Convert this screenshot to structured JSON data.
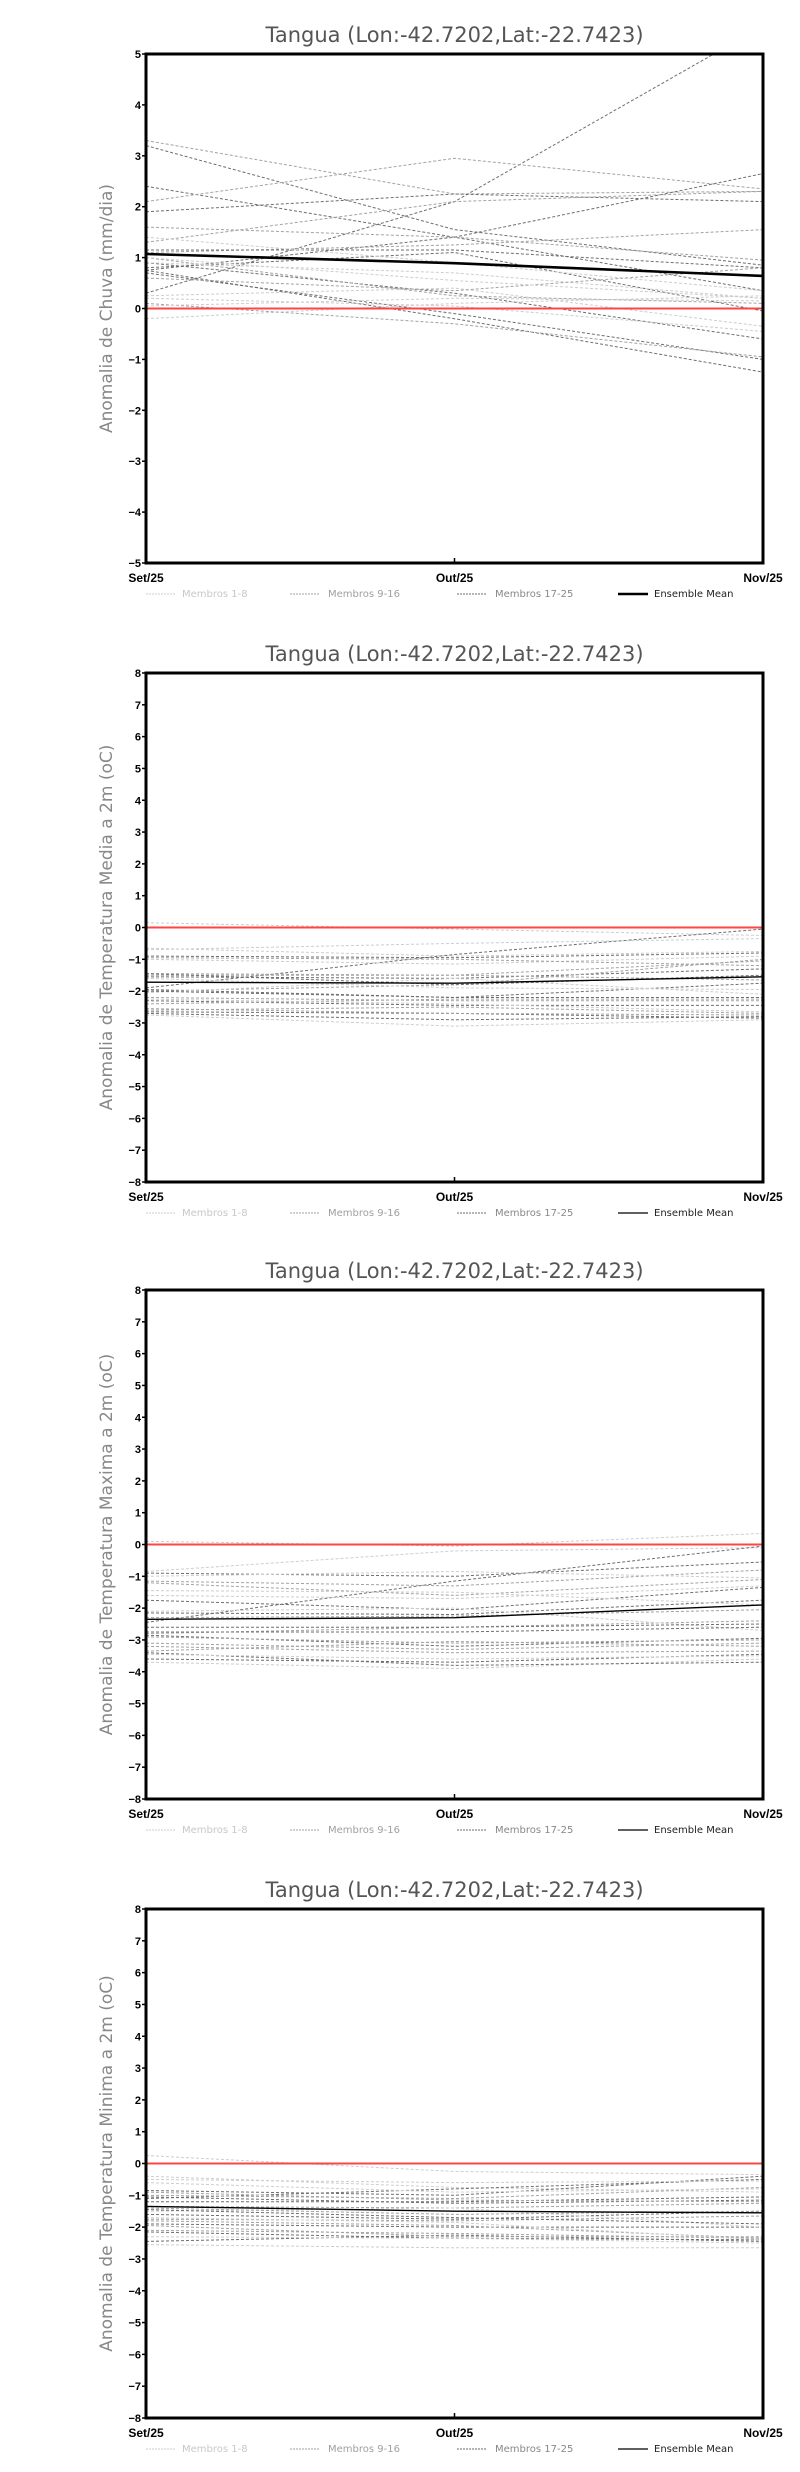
{
  "chart_data": [
    {
      "type": "line",
      "title": "Tangua (Lon:-42.7202,Lat:-22.7423)",
      "ylabel": "Anomalia de Chuva (mm/dia)",
      "categories": [
        "Set/25",
        "Out/25",
        "Nov/25"
      ],
      "ylim": [
        -5,
        5
      ],
      "yticks": [
        -5,
        -4,
        -3,
        -2,
        -1,
        0,
        1,
        2,
        3,
        4,
        5
      ],
      "reference_line": 0,
      "legend": [
        "Membros 1-8",
        "Membros 9-16",
        "Membros 17-25",
        "Ensemble Mean"
      ],
      "legend_position": "bottom",
      "ensemble_mean": [
        1.07,
        0.89,
        0.64
      ],
      "members": [
        {
          "group": 2,
          "values": [
            0.3,
            2.1,
            5.55
          ]
        },
        {
          "group": 2,
          "values": [
            3.2,
            1.55,
            0.85
          ]
        },
        {
          "group": 2,
          "values": [
            2.4,
            1.4,
            0.35
          ]
        },
        {
          "group": 1,
          "values": [
            3.3,
            2.25,
            2.3
          ]
        },
        {
          "group": 1,
          "values": [
            2.1,
            2.95,
            2.35
          ]
        },
        {
          "group": 2,
          "values": [
            1.9,
            2.25,
            2.1
          ]
        },
        {
          "group": 2,
          "values": [
            0.75,
            1.4,
            2.65
          ]
        },
        {
          "group": 1,
          "values": [
            1.6,
            1.4,
            0.95
          ]
        },
        {
          "group": 1,
          "values": [
            1.3,
            2.1,
            2.3
          ]
        },
        {
          "group": 1,
          "values": [
            1.1,
            1.25,
            1.55
          ]
        },
        {
          "group": 2,
          "values": [
            1.15,
            1.15,
            0.8
          ]
        },
        {
          "group": 2,
          "values": [
            0.8,
            1.1,
            -0.05
          ]
        },
        {
          "group": 2,
          "values": [
            0.7,
            -0.1,
            -1.0
          ]
        },
        {
          "group": 2,
          "values": [
            0.75,
            -0.2,
            -1.25
          ]
        },
        {
          "group": 2,
          "values": [
            0.9,
            0.3,
            -0.6
          ]
        },
        {
          "group": 1,
          "values": [
            1.0,
            0.25,
            0.1
          ]
        },
        {
          "group": 0,
          "values": [
            1.4,
            0.9,
            0.35
          ]
        },
        {
          "group": 0,
          "values": [
            0.9,
            0.7,
            0.2
          ]
        },
        {
          "group": 0,
          "values": [
            0.25,
            0.4,
            -0.35
          ]
        },
        {
          "group": 0,
          "values": [
            0.2,
            0.05,
            -0.45
          ]
        },
        {
          "group": 0,
          "values": [
            -0.2,
            0.1,
            0.25
          ]
        },
        {
          "group": 1,
          "values": [
            0.1,
            -0.3,
            -0.95
          ]
        },
        {
          "group": 0,
          "values": [
            0.05,
            0.2,
            0.15
          ]
        },
        {
          "group": 1,
          "values": [
            0.6,
            0.35,
            0.8
          ]
        },
        {
          "group": 0,
          "values": [
            1.0,
            0.55,
            0.2
          ]
        }
      ]
    },
    {
      "type": "line",
      "title": "Tangua (Lon:-42.7202,Lat:-22.7423)",
      "ylabel": "Anomalia de Temperatura Media a 2m (oC)",
      "categories": [
        "Set/25",
        "Out/25",
        "Nov/25"
      ],
      "ylim": [
        -8,
        8
      ],
      "yticks": [
        -8,
        -7,
        -6,
        -5,
        -4,
        -3,
        -2,
        -1,
        0,
        1,
        2,
        3,
        4,
        5,
        6,
        7,
        8
      ],
      "reference_line": 0,
      "legend": [
        "Membros 1-8",
        "Membros 9-16",
        "Membros 17-25",
        "Ensemble Mean"
      ],
      "legend_position": "bottom",
      "ensemble_mean": [
        -1.72,
        -1.75,
        -1.55
      ],
      "members": [
        {
          "group": 0,
          "values": [
            0.15,
            -0.05,
            -0.25
          ]
        },
        {
          "group": 0,
          "values": [
            -0.65,
            -0.9,
            -0.75
          ]
        },
        {
          "group": 2,
          "values": [
            -0.9,
            -0.95,
            -0.8
          ]
        },
        {
          "group": 2,
          "values": [
            -1.9,
            -0.85,
            -0.05
          ]
        },
        {
          "group": 1,
          "values": [
            -1.45,
            -1.5,
            -1.05
          ]
        },
        {
          "group": 2,
          "values": [
            -1.55,
            -1.6,
            -1.3
          ]
        },
        {
          "group": 1,
          "values": [
            -2.0,
            -1.8,
            -1.0
          ]
        },
        {
          "group": 2,
          "values": [
            -1.95,
            -2.2,
            -1.75
          ]
        },
        {
          "group": 1,
          "values": [
            -2.2,
            -2.3,
            -2.3
          ]
        },
        {
          "group": 2,
          "values": [
            -2.3,
            -2.45,
            -2.45
          ]
        },
        {
          "group": 1,
          "values": [
            -2.6,
            -2.5,
            -2.7
          ]
        },
        {
          "group": 2,
          "values": [
            -2.7,
            -2.9,
            -2.8
          ]
        },
        {
          "group": 0,
          "values": [
            -2.75,
            -3.1,
            -2.9
          ]
        },
        {
          "group": 0,
          "values": [
            -1.0,
            -1.15,
            -0.9
          ]
        },
        {
          "group": 0,
          "values": [
            -2.05,
            -1.6,
            -2.1
          ]
        },
        {
          "group": 1,
          "values": [
            -2.4,
            -2.25,
            -2.25
          ]
        },
        {
          "group": 2,
          "values": [
            -2.65,
            -2.7,
            -2.85
          ]
        },
        {
          "group": 1,
          "values": [
            -1.5,
            -1.5,
            -1.65
          ]
        },
        {
          "group": 0,
          "values": [
            -0.7,
            -0.5,
            -0.35
          ]
        },
        {
          "group": 2,
          "values": [
            -1.45,
            -1.8,
            -1.5
          ]
        },
        {
          "group": 1,
          "values": [
            -2.55,
            -2.7,
            -2.75
          ]
        },
        {
          "group": 0,
          "values": [
            -2.25,
            -2.4,
            -2.65
          ]
        },
        {
          "group": 2,
          "values": [
            -2.0,
            -2.2,
            -2.2
          ]
        },
        {
          "group": 1,
          "values": [
            -0.95,
            -1.0,
            -1.2
          ]
        },
        {
          "group": 0,
          "values": [
            -1.6,
            -1.9,
            -1.95
          ]
        }
      ]
    },
    {
      "type": "line",
      "title": "Tangua (Lon:-42.7202,Lat:-22.7423)",
      "ylabel": "Anomalia de Temperatura Maxima a 2m (oC)",
      "categories": [
        "Set/25",
        "Out/25",
        "Nov/25"
      ],
      "ylim": [
        -8,
        8
      ],
      "yticks": [
        -8,
        -7,
        -6,
        -5,
        -4,
        -3,
        -2,
        -1,
        0,
        1,
        2,
        3,
        4,
        5,
        6,
        7,
        8
      ],
      "reference_line": 0,
      "legend": [
        "Membros 1-8",
        "Membros 9-16",
        "Membros 17-25",
        "Ensemble Mean"
      ],
      "legend_position": "bottom",
      "ensemble_mean": [
        -2.35,
        -2.3,
        -1.9
      ],
      "members": [
        {
          "group": 0,
          "values": [
            0.1,
            -0.05,
            0.35
          ]
        },
        {
          "group": 0,
          "values": [
            -0.85,
            -0.2,
            -0.1
          ]
        },
        {
          "group": 2,
          "values": [
            -0.9,
            -1.0,
            -0.55
          ]
        },
        {
          "group": 2,
          "values": [
            -2.45,
            -1.15,
            -0.05
          ]
        },
        {
          "group": 1,
          "values": [
            -1.15,
            -1.3,
            -0.8
          ]
        },
        {
          "group": 2,
          "values": [
            -1.75,
            -2.05,
            -1.35
          ]
        },
        {
          "group": 1,
          "values": [
            -1.2,
            -1.6,
            -1.1
          ]
        },
        {
          "group": 2,
          "values": [
            -2.15,
            -2.2,
            -1.75
          ]
        },
        {
          "group": 1,
          "values": [
            -2.8,
            -2.6,
            -2.4
          ]
        },
        {
          "group": 2,
          "values": [
            -2.85,
            -3.2,
            -2.95
          ]
        },
        {
          "group": 1,
          "values": [
            -3.35,
            -3.05,
            -3.2
          ]
        },
        {
          "group": 2,
          "values": [
            -3.6,
            -3.7,
            -3.45
          ]
        },
        {
          "group": 0,
          "values": [
            -3.7,
            -3.9,
            -3.6
          ]
        },
        {
          "group": 0,
          "values": [
            -1.45,
            -1.5,
            -1.9
          ]
        },
        {
          "group": 0,
          "values": [
            -2.1,
            -2.0,
            -2.7
          ]
        },
        {
          "group": 1,
          "values": [
            -3.1,
            -3.3,
            -3.1
          ]
        },
        {
          "group": 2,
          "values": [
            -3.4,
            -3.8,
            -3.7
          ]
        },
        {
          "group": 1,
          "values": [
            -2.3,
            -2.25,
            -2.05
          ]
        },
        {
          "group": 0,
          "values": [
            -1.0,
            -0.85,
            -1.05
          ]
        },
        {
          "group": 2,
          "values": [
            -2.6,
            -2.6,
            -2.5
          ]
        },
        {
          "group": 1,
          "values": [
            -3.2,
            -3.4,
            -3.35
          ]
        },
        {
          "group": 0,
          "values": [
            -3.45,
            -3.6,
            -3.5
          ]
        },
        {
          "group": 2,
          "values": [
            -2.75,
            -2.75,
            -2.6
          ]
        },
        {
          "group": 1,
          "values": [
            -2.9,
            -3.1,
            -3.0
          ]
        },
        {
          "group": 0,
          "values": [
            -1.6,
            -1.7,
            -1.3
          ]
        }
      ]
    },
    {
      "type": "line",
      "title": "Tangua (Lon:-42.7202,Lat:-22.7423)",
      "ylabel": "Anomalia de Temperatura Minima a 2m (oC)",
      "categories": [
        "Set/25",
        "Out/25",
        "Nov/25"
      ],
      "ylim": [
        -8,
        8
      ],
      "yticks": [
        -8,
        -7,
        -6,
        -5,
        -4,
        -3,
        -2,
        -1,
        0,
        1,
        2,
        3,
        4,
        5,
        6,
        7,
        8
      ],
      "reference_line": 0,
      "legend": [
        "Membros 1-8",
        "Membros 9-16",
        "Membros 17-25",
        "Ensemble Mean"
      ],
      "legend_position": "bottom",
      "ensemble_mean": [
        -1.35,
        -1.5,
        -1.55
      ],
      "members": [
        {
          "group": 0,
          "values": [
            0.25,
            -0.25,
            -0.35
          ]
        },
        {
          "group": 0,
          "values": [
            -0.4,
            -0.75,
            -0.9
          ]
        },
        {
          "group": 2,
          "values": [
            -0.85,
            -1.0,
            -0.4
          ]
        },
        {
          "group": 2,
          "values": [
            -1.1,
            -0.8,
            -0.5
          ]
        },
        {
          "group": 1,
          "values": [
            -1.0,
            -1.1,
            -0.75
          ]
        },
        {
          "group": 2,
          "values": [
            -1.2,
            -1.2,
            -1.05
          ]
        },
        {
          "group": 1,
          "values": [
            -1.35,
            -1.4,
            -1.25
          ]
        },
        {
          "group": 2,
          "values": [
            -1.6,
            -1.75,
            -1.5
          ]
        },
        {
          "group": 1,
          "values": [
            -1.75,
            -1.8,
            -1.65
          ]
        },
        {
          "group": 2,
          "values": [
            -1.9,
            -2.0,
            -2.0
          ]
        },
        {
          "group": 1,
          "values": [
            -2.1,
            -2.2,
            -2.35
          ]
        },
        {
          "group": 2,
          "values": [
            -2.45,
            -2.25,
            -2.45
          ]
        },
        {
          "group": 0,
          "values": [
            -2.55,
            -2.65,
            -2.65
          ]
        },
        {
          "group": 0,
          "values": [
            -0.5,
            -0.6,
            -0.55
          ]
        },
        {
          "group": 0,
          "values": [
            -1.5,
            -1.4,
            -2.0
          ]
        },
        {
          "group": 1,
          "values": [
            -1.95,
            -2.3,
            -2.3
          ]
        },
        {
          "group": 2,
          "values": [
            -2.15,
            -2.35,
            -2.4
          ]
        },
        {
          "group": 1,
          "values": [
            -1.4,
            -1.6,
            -1.5
          ]
        },
        {
          "group": 0,
          "values": [
            -0.6,
            -0.9,
            -0.8
          ]
        },
        {
          "group": 2,
          "values": [
            -1.05,
            -1.25,
            -1.15
          ]
        },
        {
          "group": 1,
          "values": [
            -1.8,
            -1.95,
            -2.35
          ]
        },
        {
          "group": 0,
          "values": [
            -2.3,
            -2.35,
            -2.5
          ]
        },
        {
          "group": 2,
          "values": [
            -1.45,
            -1.7,
            -1.9
          ]
        },
        {
          "group": 1,
          "values": [
            -0.9,
            -1.15,
            -1.2
          ]
        },
        {
          "group": 0,
          "values": [
            -1.7,
            -1.85,
            -2.4
          ]
        }
      ]
    }
  ],
  "colors": {
    "group_colors": [
      "#cdcdcd",
      "#a3a3a3",
      "#6e6e6e"
    ],
    "mean": "#000000",
    "reference": "#ff4444",
    "legend_text": [
      "#c8c8c8",
      "#a0a0a0",
      "#888888",
      "#222222"
    ]
  }
}
